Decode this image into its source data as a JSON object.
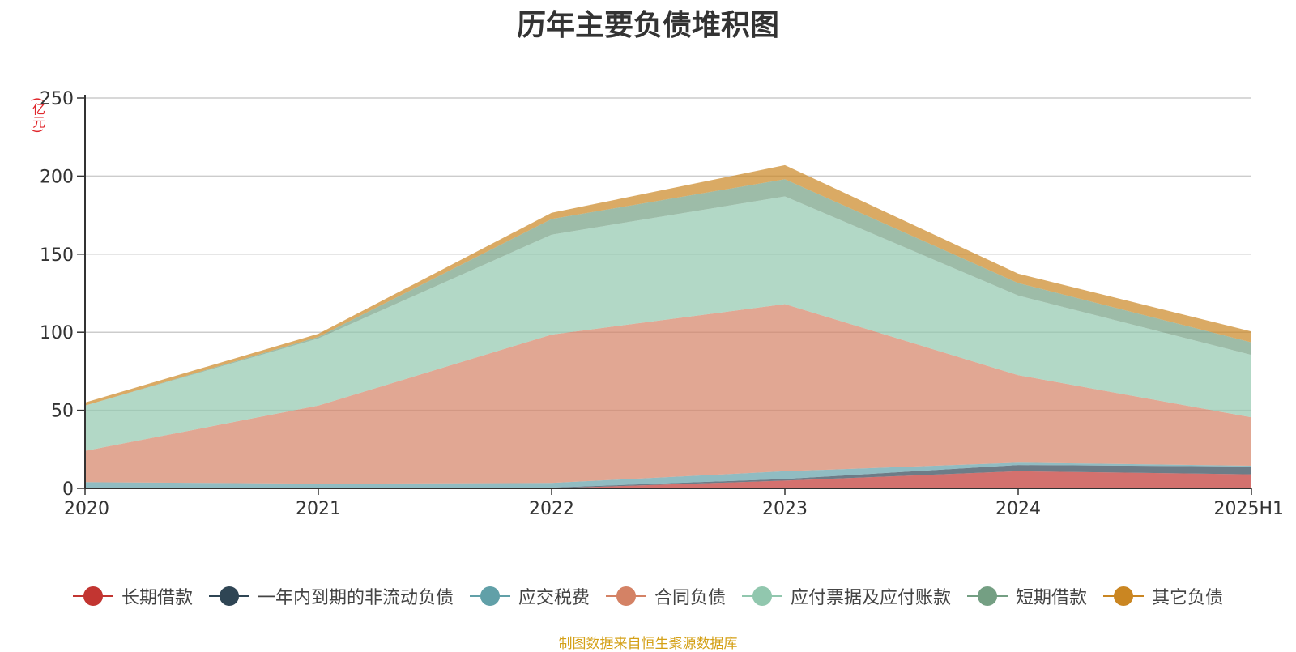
{
  "chart_data": {
    "type": "area",
    "stacked": true,
    "title": "历年主要负债堆积图",
    "unit_label": "(亿元)",
    "x": [
      "2020",
      "2021",
      "2022",
      "2023",
      "2024",
      "2025H1"
    ],
    "ylim": [
      0,
      250
    ],
    "yticks": [
      0,
      50,
      100,
      150,
      200,
      250
    ],
    "grid": true,
    "legend_position": "bottom",
    "series": [
      {
        "name": "长期借款",
        "color": "#c23531",
        "values": [
          0,
          0,
          0,
          5,
          11,
          9
        ]
      },
      {
        "name": "一年内到期的非流动负债",
        "color": "#2f4554",
        "values": [
          0,
          0,
          0.5,
          1,
          4,
          5
        ]
      },
      {
        "name": "应交税费",
        "color": "#61a0a8",
        "values": [
          4,
          3,
          3,
          5,
          1.5,
          0.5
        ]
      },
      {
        "name": "合同负债",
        "color": "#d48265",
        "values": [
          20,
          50,
          95,
          107,
          56,
          31
        ]
      },
      {
        "name": "应付票据及应付账款",
        "color": "#91c7ae",
        "values": [
          29,
          43,
          64,
          69,
          51,
          40
        ]
      },
      {
        "name": "短期借款",
        "color": "#749f83",
        "values": [
          0,
          1,
          10,
          11,
          8,
          8
        ]
      },
      {
        "name": "其它负债",
        "color": "#ca8622",
        "values": [
          2,
          2,
          4,
          9,
          6,
          7
        ]
      }
    ]
  },
  "source_text": "制图数据来自恒生聚源数据库"
}
